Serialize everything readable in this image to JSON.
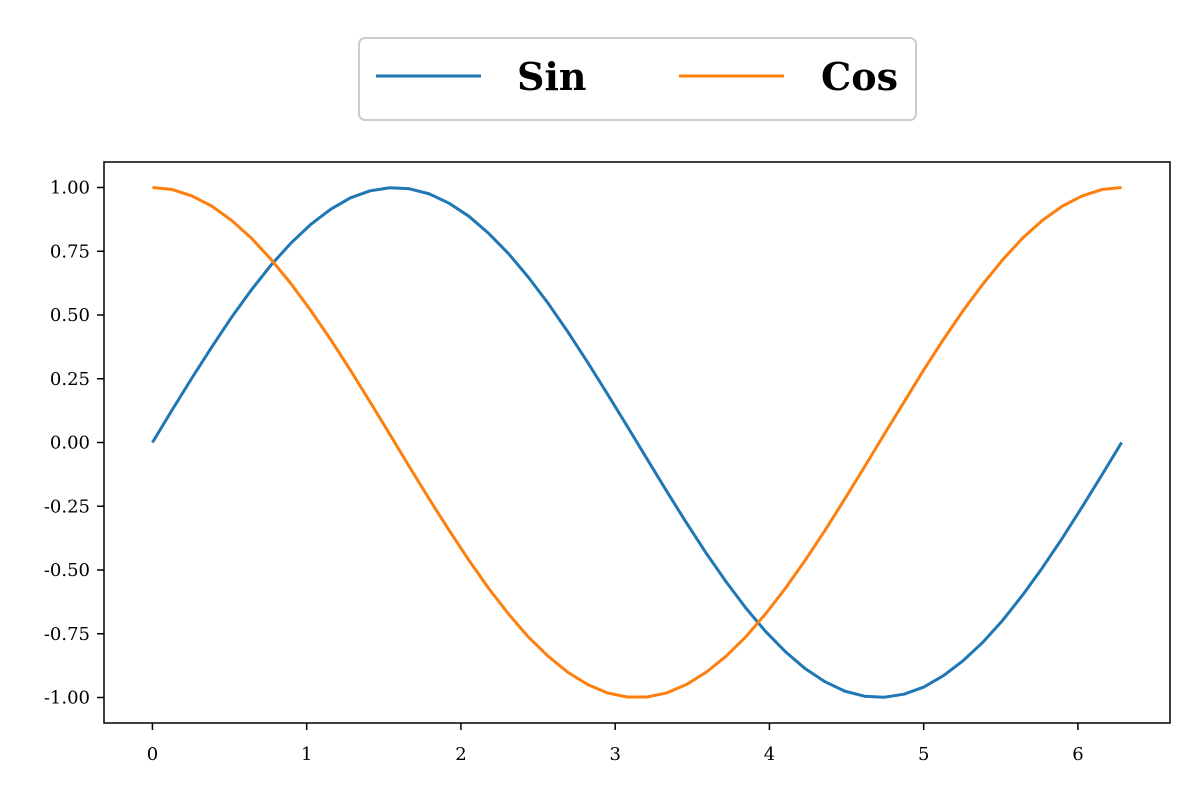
{
  "chart_data": {
    "type": "line",
    "title": "",
    "xlabel": "",
    "ylabel": "",
    "xlim": [
      -0.314,
      6.597
    ],
    "ylim": [
      -1.1,
      1.1
    ],
    "xticks": [
      0,
      1,
      2,
      3,
      4,
      5,
      6
    ],
    "xtick_labels": [
      "0",
      "1",
      "2",
      "3",
      "4",
      "5",
      "6"
    ],
    "yticks": [
      1.0,
      0.75,
      0.5,
      0.25,
      0.0,
      -0.25,
      -0.5,
      -0.75,
      -1.0
    ],
    "ytick_labels": [
      "1.00",
      "0.75",
      "0.50",
      "0.25",
      "0.00",
      "-0.25",
      "-0.50",
      "-0.75",
      "-1.00"
    ],
    "grid": false,
    "legend_position": "top-center, outside plot",
    "series": [
      {
        "name": "Sin",
        "color": "#1f77b4",
        "x": [
          0,
          0.128,
          0.256,
          0.385,
          0.513,
          0.641,
          0.769,
          0.898,
          1.026,
          1.154,
          1.282,
          1.411,
          1.539,
          1.667,
          1.795,
          1.924,
          2.052,
          2.18,
          2.308,
          2.436,
          2.565,
          2.693,
          2.821,
          2.949,
          3.078,
          3.206,
          3.334,
          3.462,
          3.59,
          3.719,
          3.847,
          3.975,
          4.103,
          4.232,
          4.36,
          4.488,
          4.616,
          4.744,
          4.873,
          5.001,
          5.129,
          5.257,
          5.386,
          5.514,
          5.642,
          5.77,
          5.899,
          6.027,
          6.155,
          6.283
        ],
        "y": [
          0.0,
          0.128,
          0.253,
          0.375,
          0.491,
          0.598,
          0.696,
          0.782,
          0.855,
          0.914,
          0.959,
          0.987,
          0.999,
          0.995,
          0.975,
          0.938,
          0.887,
          0.82,
          0.741,
          0.649,
          0.546,
          0.434,
          0.315,
          0.191,
          0.064,
          -0.064,
          -0.191,
          -0.315,
          -0.434,
          -0.546,
          -0.649,
          -0.741,
          -0.82,
          -0.887,
          -0.938,
          -0.975,
          -0.995,
          -0.999,
          -0.987,
          -0.959,
          -0.914,
          -0.855,
          -0.782,
          -0.696,
          -0.598,
          -0.491,
          -0.375,
          -0.253,
          -0.128,
          0.0
        ]
      },
      {
        "name": "Cos",
        "color": "#ff7f0e",
        "x": [
          0,
          0.128,
          0.256,
          0.385,
          0.513,
          0.641,
          0.769,
          0.898,
          1.026,
          1.154,
          1.282,
          1.411,
          1.539,
          1.667,
          1.795,
          1.924,
          2.052,
          2.18,
          2.308,
          2.436,
          2.565,
          2.693,
          2.821,
          2.949,
          3.078,
          3.206,
          3.334,
          3.462,
          3.59,
          3.719,
          3.847,
          3.975,
          4.103,
          4.232,
          4.36,
          4.488,
          4.616,
          4.744,
          4.873,
          5.001,
          5.129,
          5.257,
          5.386,
          5.514,
          5.642,
          5.77,
          5.899,
          6.027,
          6.155,
          6.283
        ],
        "y": [
          1.0,
          0.992,
          0.967,
          0.927,
          0.871,
          0.802,
          0.718,
          0.623,
          0.518,
          0.405,
          0.285,
          0.159,
          0.032,
          -0.096,
          -0.222,
          -0.345,
          -0.462,
          -0.572,
          -0.672,
          -0.762,
          -0.838,
          -0.901,
          -0.949,
          -0.982,
          -0.998,
          -0.998,
          -0.982,
          -0.949,
          -0.901,
          -0.838,
          -0.762,
          -0.672,
          -0.572,
          -0.462,
          -0.345,
          -0.222,
          -0.096,
          0.032,
          0.159,
          0.285,
          0.405,
          0.518,
          0.623,
          0.718,
          0.802,
          0.871,
          0.927,
          0.967,
          0.992,
          1.0
        ]
      }
    ]
  }
}
